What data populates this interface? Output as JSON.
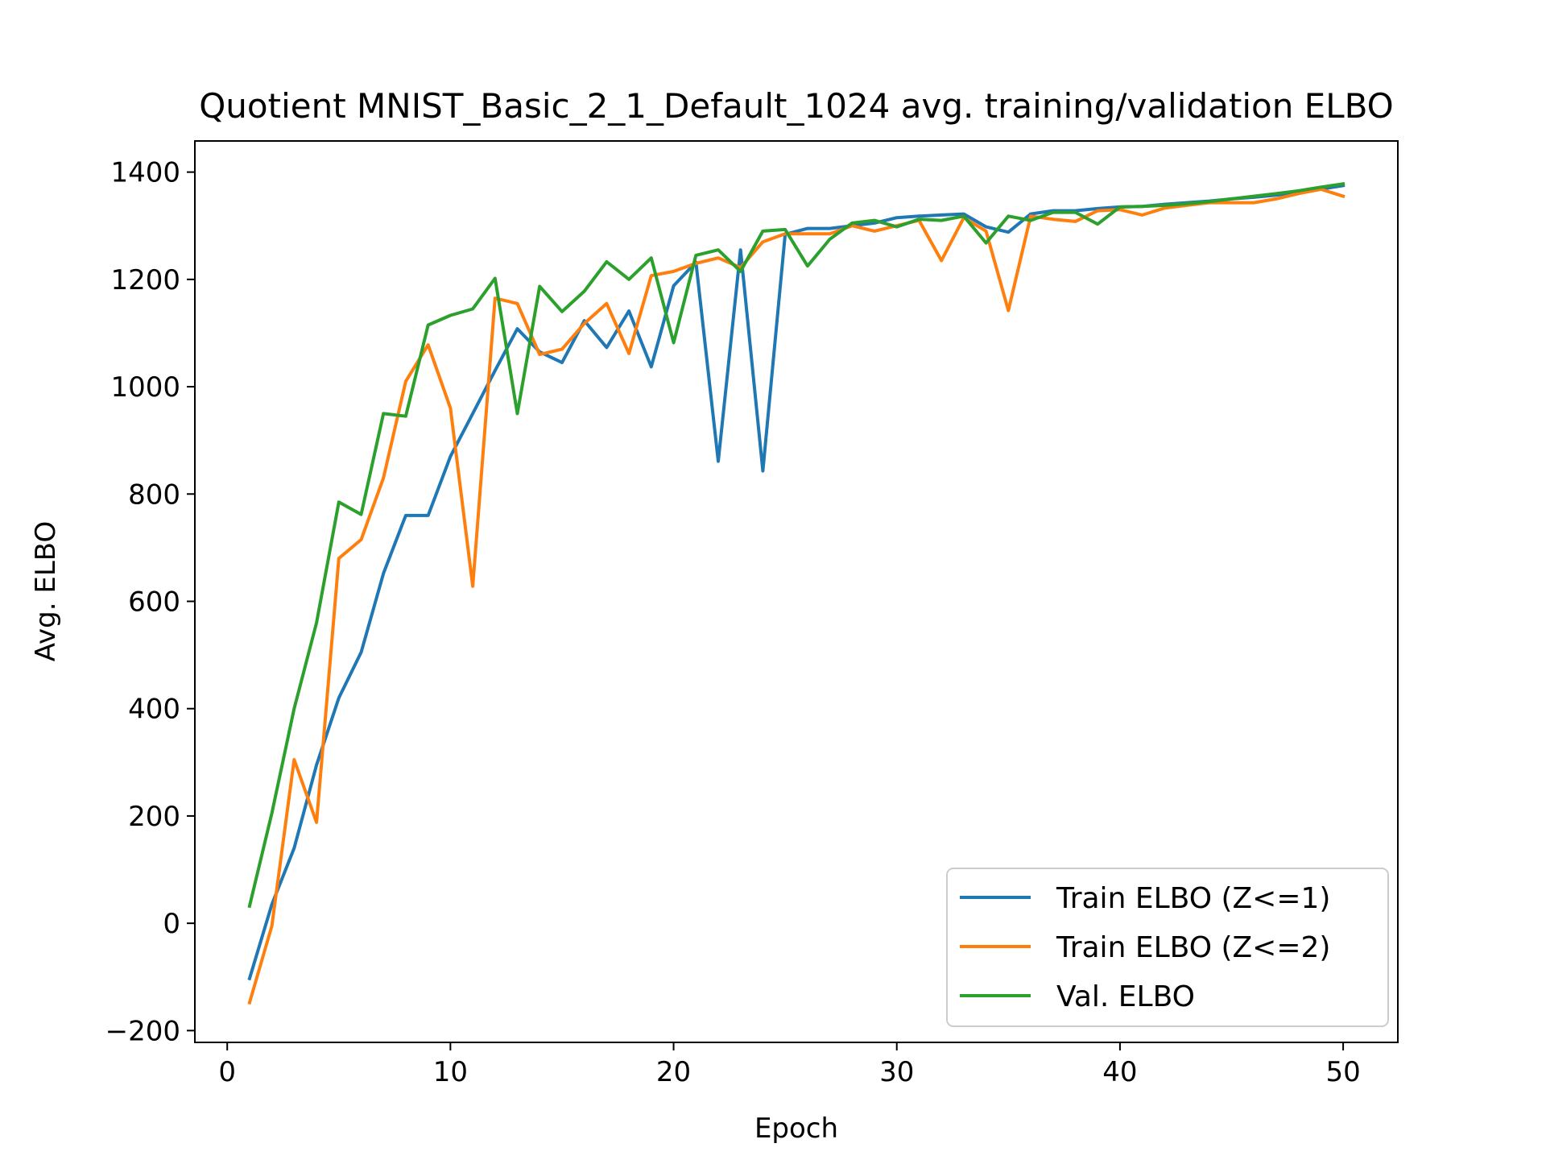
{
  "chart_data": {
    "type": "line",
    "title": "Quotient MNIST_Basic_2_1_Default_1024 avg. training/validation ELBO",
    "xlabel": "Epoch",
    "ylabel": "Avg. ELBO",
    "xlim": [
      -1.45,
      52.45
    ],
    "ylim": [
      -222,
      1458
    ],
    "xticks": [
      0,
      10,
      20,
      30,
      40,
      50
    ],
    "xtick_labels": [
      "0",
      "10",
      "20",
      "30",
      "40",
      "50"
    ],
    "yticks": [
      -200,
      0,
      200,
      400,
      600,
      800,
      1000,
      1200,
      1400
    ],
    "ytick_labels": [
      "−200",
      "0",
      "200",
      "400",
      "600",
      "800",
      "1000",
      "1200",
      "1400"
    ],
    "grid": false,
    "legend_position": "lower-right",
    "x": [
      1,
      2,
      3,
      4,
      5,
      6,
      7,
      8,
      9,
      10,
      11,
      12,
      13,
      14,
      15,
      16,
      17,
      18,
      19,
      20,
      21,
      22,
      23,
      24,
      25,
      26,
      27,
      28,
      29,
      30,
      31,
      32,
      33,
      34,
      35,
      36,
      37,
      38,
      39,
      40,
      41,
      42,
      43,
      44,
      45,
      46,
      47,
      48,
      49,
      50
    ],
    "series": [
      {
        "name": "Train ELBO (Z<=1)",
        "color": "#1f77b4",
        "values": [
          -103,
          35,
          140,
          295,
          420,
          505,
          652,
          760,
          760,
          870,
          950,
          1030,
          1108,
          1065,
          1045,
          1123,
          1073,
          1141,
          1037,
          1188,
          1232,
          861,
          1255,
          843,
          1284,
          1295,
          1295,
          1300,
          1305,
          1315,
          1318,
          1320,
          1322,
          1298,
          1288,
          1322,
          1328,
          1328,
          1332,
          1335,
          1336,
          1340,
          1343,
          1346,
          1350,
          1353,
          1357,
          1362,
          1368,
          1375
        ]
      },
      {
        "name": "Train ELBO (Z<=2)",
        "color": "#ff7f0e",
        "values": [
          -148,
          -5,
          305,
          188,
          680,
          715,
          830,
          1010,
          1078,
          960,
          628,
          1165,
          1155,
          1060,
          1070,
          1118,
          1155,
          1062,
          1207,
          1215,
          1230,
          1240,
          1222,
          1270,
          1285,
          1285,
          1285,
          1300,
          1290,
          1300,
          1310,
          1235,
          1315,
          1290,
          1142,
          1318,
          1312,
          1308,
          1328,
          1330,
          1320,
          1333,
          1338,
          1343,
          1343,
          1343,
          1350,
          1360,
          1368,
          1355
        ]
      },
      {
        "name": "Val. ELBO",
        "color": "#2ca02c",
        "values": [
          32,
          205,
          400,
          560,
          785,
          762,
          950,
          945,
          1115,
          1133,
          1145,
          1202,
          950,
          1187,
          1140,
          1178,
          1233,
          1200,
          1240,
          1082,
          1245,
          1255,
          1215,
          1290,
          1293,
          1225,
          1275,
          1305,
          1310,
          1298,
          1312,
          1310,
          1318,
          1268,
          1318,
          1310,
          1325,
          1325,
          1303,
          1335,
          1336,
          1338,
          1341,
          1345,
          1350,
          1355,
          1360,
          1365,
          1372,
          1378
        ]
      }
    ]
  }
}
